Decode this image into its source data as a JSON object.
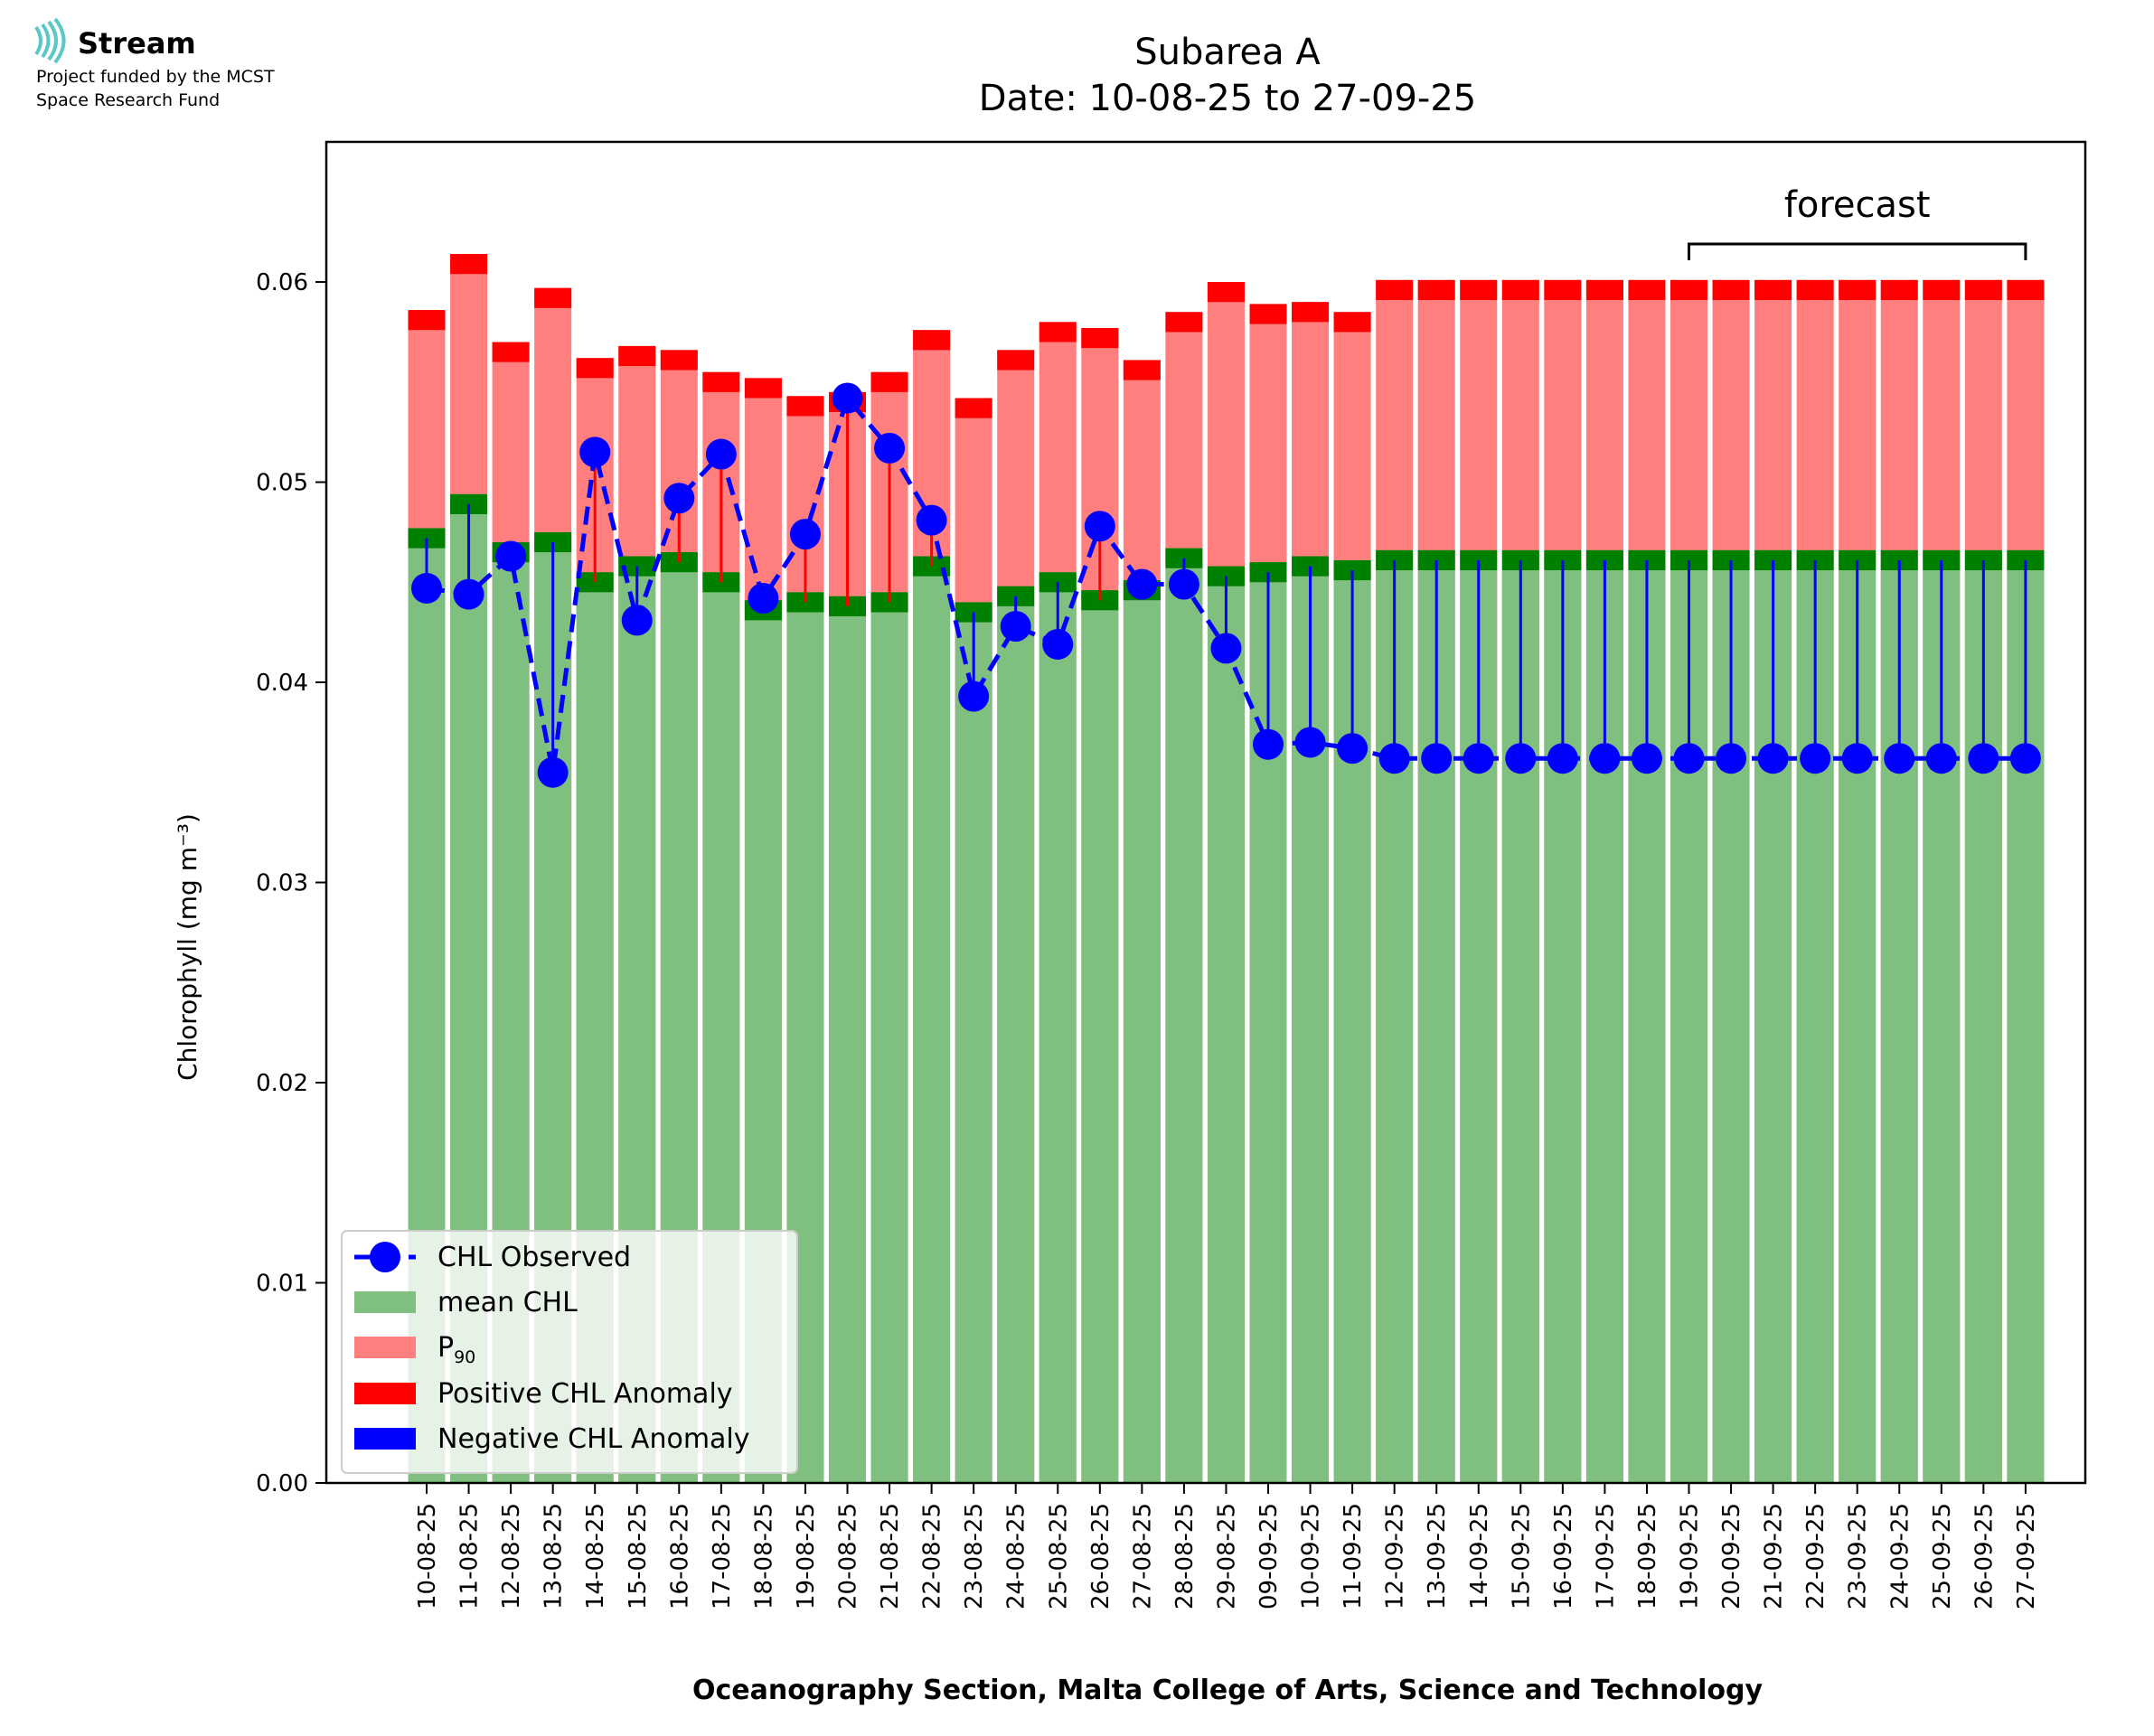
{
  "logo": {
    "name": "Stream",
    "line1": "Project funded by the MCST",
    "line2": "Space Research Fund"
  },
  "colors": {
    "mean": "#7fbf7f",
    "mean_band": "#008000",
    "p90": "#ff7f7f",
    "p90_band": "#ff0000",
    "observed": "#0000ff",
    "positive_anomaly": "#ff0000",
    "negative_anomaly": "#0000ff",
    "logo_accent": "#5bc8c8"
  },
  "forecast": {
    "label": "forecast",
    "start_category": "19-09-25",
    "end_category": "27-09-25"
  },
  "chart_data": {
    "type": "bar",
    "title": "Subarea A",
    "subtitle": "Date: 10-08-25 to 27-09-25",
    "xlabel": "Oceanography Section, Malta College of Arts, Science and Technology",
    "ylabel": "Chlorophyll (mg m⁻³)",
    "ylim": [
      0,
      0.067
    ],
    "yticks": [
      "0.00",
      "0.01",
      "0.02",
      "0.03",
      "0.04",
      "0.05",
      "0.06"
    ],
    "ytick_values": [
      0,
      0.01,
      0.02,
      0.03,
      0.04,
      0.05,
      0.06
    ],
    "grid": false,
    "legend_position": "lower-left",
    "categories": [
      "10-08-25",
      "11-08-25",
      "12-08-25",
      "13-08-25",
      "14-08-25",
      "15-08-25",
      "16-08-25",
      "17-08-25",
      "18-08-25",
      "19-08-25",
      "20-08-25",
      "21-08-25",
      "22-08-25",
      "23-08-25",
      "24-08-25",
      "25-08-25",
      "26-08-25",
      "27-08-25",
      "28-08-25",
      "29-08-25",
      "09-09-25",
      "10-09-25",
      "11-09-25",
      "12-09-25",
      "13-09-25",
      "14-09-25",
      "15-09-25",
      "16-09-25",
      "17-09-25",
      "18-09-25",
      "19-09-25",
      "20-09-25",
      "21-09-25",
      "22-09-25",
      "23-09-25",
      "24-09-25",
      "25-09-25",
      "26-09-25",
      "27-09-25"
    ],
    "series": [
      {
        "name": "mean CHL",
        "values": [
          0.0472,
          0.0489,
          0.0465,
          0.047,
          0.045,
          0.0458,
          0.046,
          0.045,
          0.0436,
          0.044,
          0.0438,
          0.044,
          0.0458,
          0.0435,
          0.0443,
          0.045,
          0.0441,
          0.0446,
          0.0462,
          0.0453,
          0.0455,
          0.0458,
          0.0456,
          0.0461,
          0.0461,
          0.0461,
          0.0461,
          0.0461,
          0.0461,
          0.0461,
          0.0461,
          0.0461,
          0.0461,
          0.0461,
          0.0461,
          0.0461,
          0.0461,
          0.0461,
          0.0461
        ]
      },
      {
        "name": "P90",
        "values": [
          0.0576,
          0.0604,
          0.056,
          0.0587,
          0.0552,
          0.0558,
          0.0556,
          0.0545,
          0.0542,
          0.0533,
          0.0535,
          0.0545,
          0.0566,
          0.0532,
          0.0556,
          0.057,
          0.0567,
          0.0551,
          0.0575,
          0.059,
          0.0579,
          0.058,
          0.0575,
          0.0591,
          0.0591,
          0.0591,
          0.0591,
          0.0591,
          0.0591,
          0.0591,
          0.0591,
          0.0591,
          0.0591,
          0.0591,
          0.0591,
          0.0591,
          0.0591,
          0.0591,
          0.0591
        ]
      },
      {
        "name": "CHL Observed",
        "values": [
          0.0447,
          0.0444,
          0.0463,
          0.0355,
          0.0515,
          0.0431,
          0.0492,
          0.0514,
          0.0442,
          0.0474,
          0.0542,
          0.0517,
          0.0481,
          0.0393,
          0.0428,
          0.0419,
          0.0478,
          0.0449,
          0.0449,
          0.0417,
          0.0369,
          0.037,
          0.0367,
          0.0362,
          0.0362,
          0.0362,
          0.0362,
          0.0362,
          0.0362,
          0.0362,
          0.0362,
          0.0362,
          0.0362,
          0.0362,
          0.0362,
          0.0362,
          0.0362,
          0.0362,
          0.0362
        ]
      }
    ],
    "legend": [
      "CHL Observed",
      "mean CHL",
      "P",
      "Positive CHL Anomaly",
      "Negative CHL Anomaly"
    ],
    "legend_p90_sub": "90"
  }
}
